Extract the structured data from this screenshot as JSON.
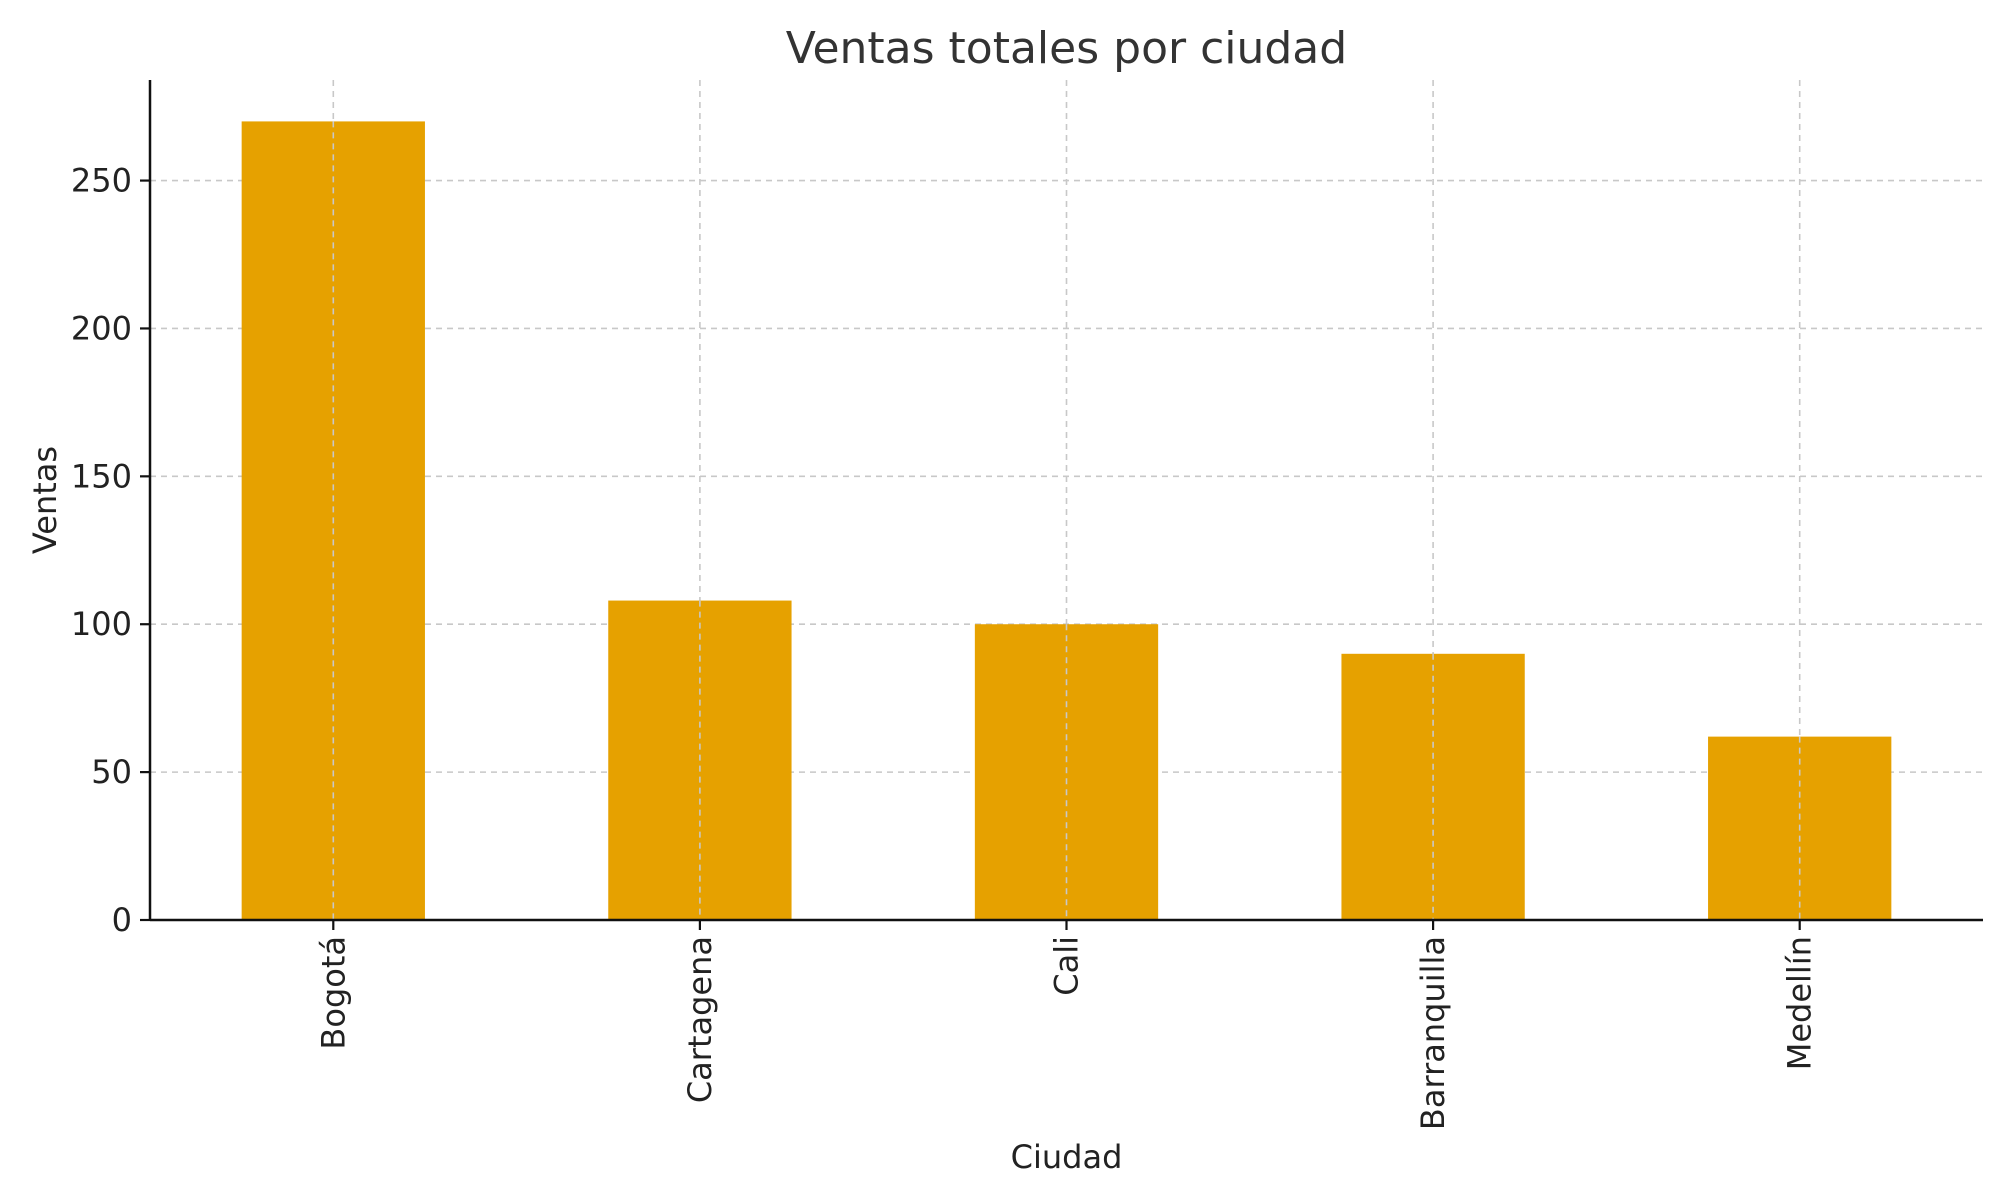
{
  "chart_data": {
    "type": "bar",
    "title": "Ventas totales por ciudad",
    "xlabel": "Ciudad",
    "ylabel": "Ventas",
    "categories": [
      "Bogotá",
      "Cartagena",
      "Cali",
      "Barranquilla",
      "Medellín"
    ],
    "values": [
      270,
      108,
      100,
      90,
      62
    ],
    "ylim": [
      0,
      284
    ],
    "yticks": [
      0,
      50,
      100,
      150,
      200,
      250
    ],
    "grid": true,
    "legend": "none",
    "colors": {
      "bar": "#e6a100",
      "grid": "#c8c8c8",
      "axis": "#111111",
      "text": "#222222"
    }
  }
}
